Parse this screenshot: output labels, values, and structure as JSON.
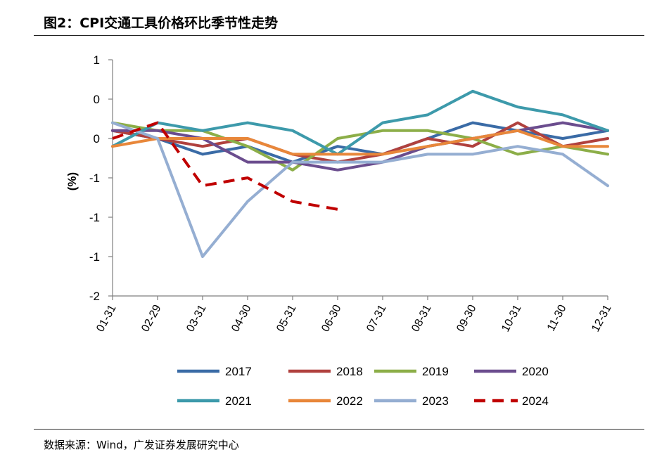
{
  "header": {
    "title": "图2：CPI交通工具价格环比季节性走势"
  },
  "footer": {
    "source": "数据来源：Wind，广发证券发展研究中心"
  },
  "chart_data": {
    "type": "line",
    "title": "CPI交通工具价格环比季节性走势",
    "xlabel": "",
    "ylabel": "(%)",
    "ylim": [
      -2.0,
      1.0
    ],
    "y_tick_values": [
      1.0,
      0.5,
      0.0,
      -0.5,
      -1.0,
      -1.5,
      -2.0
    ],
    "y_tick_labels": [
      "1",
      "0",
      "0",
      "-1",
      "-1",
      "-1",
      "-2"
    ],
    "categories": [
      "01-31",
      "02-29",
      "03-31",
      "04-30",
      "05-31",
      "06-30",
      "07-31",
      "08-31",
      "09-30",
      "10-31",
      "11-30",
      "12-31"
    ],
    "legend_position": "bottom",
    "series": [
      {
        "name": "2017",
        "color": "#3A6BA6",
        "dash": false,
        "values": [
          0.1,
          0.0,
          -0.2,
          -0.1,
          -0.3,
          -0.1,
          -0.2,
          0.0,
          0.2,
          0.1,
          0.0,
          0.1
        ]
      },
      {
        "name": "2018",
        "color": "#B0413E",
        "dash": false,
        "values": [
          0.1,
          0.0,
          -0.1,
          0.0,
          -0.2,
          -0.3,
          -0.2,
          0.0,
          -0.1,
          0.2,
          -0.1,
          0.0
        ]
      },
      {
        "name": "2019",
        "color": "#8CAE48",
        "dash": false,
        "values": [
          0.2,
          0.1,
          0.1,
          -0.1,
          -0.4,
          0.0,
          0.1,
          0.1,
          0.0,
          -0.2,
          -0.1,
          -0.2
        ]
      },
      {
        "name": "2020",
        "color": "#6B4D8E",
        "dash": false,
        "values": [
          0.1,
          0.1,
          0.0,
          -0.3,
          -0.3,
          -0.4,
          -0.3,
          -0.1,
          0.0,
          0.1,
          0.2,
          0.1
        ]
      },
      {
        "name": "2021",
        "color": "#3D9AAB",
        "dash": false,
        "values": [
          -0.1,
          0.2,
          0.1,
          0.2,
          0.1,
          -0.2,
          0.2,
          0.3,
          0.6,
          0.4,
          0.3,
          0.1
        ]
      },
      {
        "name": "2022",
        "color": "#E8873A",
        "dash": false,
        "values": [
          -0.1,
          0.0,
          0.0,
          0.0,
          -0.2,
          -0.2,
          -0.2,
          -0.1,
          0.0,
          0.1,
          -0.1,
          -0.1
        ]
      },
      {
        "name": "2023",
        "color": "#95AED2",
        "dash": false,
        "values": [
          0.2,
          0.0,
          -1.5,
          -0.8,
          -0.3,
          -0.3,
          -0.3,
          -0.2,
          -0.2,
          -0.1,
          -0.2,
          -0.6
        ]
      },
      {
        "name": "2024",
        "color": "#C00000",
        "dash": true,
        "values": [
          0.0,
          0.2,
          -0.6,
          -0.5,
          -0.8,
          -0.9,
          null,
          null,
          null,
          null,
          null,
          null
        ]
      }
    ]
  }
}
